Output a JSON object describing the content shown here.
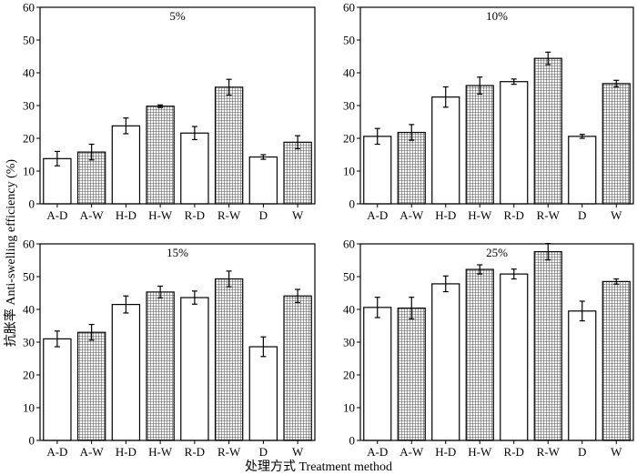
{
  "figure": {
    "ylabel": "抗胀率 Anti-swelling efficiency (%)",
    "xlabel": "处理方式 Treatment method"
  },
  "chart_data": [
    {
      "type": "bar",
      "title": "5%",
      "categories": [
        "A-D",
        "A-W",
        "H-D",
        "H-W",
        "R-D",
        "R-W",
        "D",
        "W"
      ],
      "values": [
        13.8,
        15.8,
        23.8,
        29.8,
        21.6,
        35.6,
        14.3,
        18.8
      ],
      "errors": [
        2.2,
        2.4,
        2.4,
        0.4,
        2.0,
        2.4,
        0.7,
        2.0
      ],
      "patterns": [
        "plain",
        "grid",
        "plain",
        "grid",
        "plain",
        "grid",
        "plain",
        "grid"
      ],
      "ylim": [
        0,
        60
      ],
      "yticks": [
        0,
        10,
        20,
        30,
        40,
        50,
        60
      ],
      "xlabel": "",
      "ylabel": ""
    },
    {
      "type": "bar",
      "title": "10%",
      "categories": [
        "A-D",
        "A-W",
        "H-D",
        "H-W",
        "R-D",
        "R-W",
        "D",
        "W"
      ],
      "values": [
        20.6,
        21.8,
        32.6,
        36.1,
        37.3,
        44.4,
        20.6,
        36.7
      ],
      "errors": [
        2.4,
        2.4,
        3.1,
        2.6,
        0.8,
        1.9,
        0.6,
        1.0
      ],
      "patterns": [
        "plain",
        "grid",
        "plain",
        "grid",
        "plain",
        "grid",
        "plain",
        "grid"
      ],
      "ylim": [
        0,
        60
      ],
      "yticks": [
        0,
        10,
        20,
        30,
        40,
        50,
        60
      ],
      "xlabel": "",
      "ylabel": ""
    },
    {
      "type": "bar",
      "title": "15%",
      "categories": [
        "A-D",
        "A-W",
        "H-D",
        "H-W",
        "R-D",
        "R-W",
        "D",
        "W"
      ],
      "values": [
        31.0,
        33.0,
        41.5,
        45.3,
        43.6,
        49.3,
        28.6,
        44.1
      ],
      "errors": [
        2.4,
        2.4,
        2.6,
        1.8,
        2.0,
        2.4,
        3.0,
        2.0
      ],
      "patterns": [
        "plain",
        "grid",
        "plain",
        "grid",
        "plain",
        "grid",
        "plain",
        "grid"
      ],
      "ylim": [
        0,
        60
      ],
      "yticks": [
        0,
        10,
        20,
        30,
        40,
        50,
        60
      ],
      "xlabel": "",
      "ylabel": ""
    },
    {
      "type": "bar",
      "title": "25%",
      "categories": [
        "A-D",
        "A-W",
        "H-D",
        "H-W",
        "R-D",
        "R-W",
        "D",
        "W"
      ],
      "values": [
        40.6,
        40.4,
        47.8,
        52.2,
        50.8,
        57.6,
        39.5,
        48.5
      ],
      "errors": [
        3.1,
        3.3,
        2.4,
        1.4,
        1.5,
        2.5,
        3.0,
        0.8
      ],
      "patterns": [
        "plain",
        "grid",
        "plain",
        "grid",
        "plain",
        "grid",
        "plain",
        "grid"
      ],
      "ylim": [
        0,
        60
      ],
      "yticks": [
        0,
        10,
        20,
        30,
        40,
        50,
        60
      ],
      "xlabel": "",
      "ylabel": ""
    }
  ]
}
